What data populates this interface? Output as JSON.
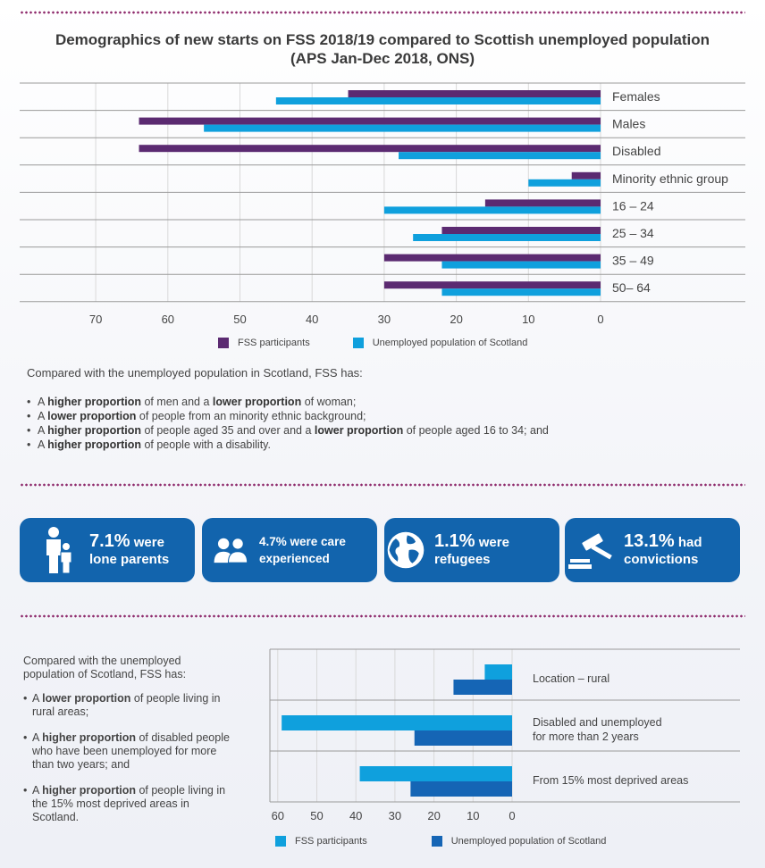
{
  "title_line1": "Demographics of new starts on FSS 2018/19 compared to Scottish unemployed population",
  "title_line2": "(APS Jan-Dec 2018, ONS)",
  "colors": {
    "purple": "#5b2a71",
    "cyan": "#0fa0dd",
    "darkblue": "#1565b5",
    "cardblue": "#1264ad"
  },
  "chart_data": [
    {
      "type": "bar",
      "orientation": "horizontal-reversed",
      "categories": [
        "Females",
        "Males",
        "Disabled",
        "Minority ethnic group",
        "16 – 24",
        "25 – 34",
        "35 – 49",
        "50– 64"
      ],
      "series": [
        {
          "name": "FSS participants",
          "values": [
            35,
            64,
            64,
            4,
            16,
            22,
            30,
            30
          ]
        },
        {
          "name": "Unemployed population of Scotland",
          "values": [
            45,
            55,
            28,
            10,
            30,
            26,
            22,
            22
          ]
        }
      ],
      "xticks": [
        "70",
        "60",
        "50",
        "40",
        "30",
        "20",
        "10",
        "0"
      ],
      "xlim": [
        0,
        70
      ],
      "grid": true,
      "legend": "bottom"
    },
    {
      "type": "bar",
      "orientation": "horizontal-reversed",
      "categories": [
        "Location – rural",
        "Disabled and unemployed|for more than 2 years",
        "From 15% most deprived areas"
      ],
      "series": [
        {
          "name": "FSS participants",
          "values": [
            7,
            59,
            39
          ]
        },
        {
          "name": "Unemployed population of Scotland",
          "values": [
            15,
            25,
            26
          ]
        }
      ],
      "xticks": [
        "60",
        "50",
        "40",
        "30",
        "20",
        "10",
        "0"
      ],
      "xlim": [
        0,
        60
      ],
      "grid": true,
      "legend": "bottom"
    }
  ],
  "intro": "Compared with the unemployed population in Scotland, FSS has:",
  "bullets": [
    {
      "a": "A ",
      "b": "higher proportion",
      "c": " of men and a ",
      "d": "lower proportion",
      "e": " of woman;"
    },
    {
      "a": "A ",
      "b": "lower proportion",
      "c": " of people from an minority ethnic background;",
      "d": "",
      "e": ""
    },
    {
      "a": "A ",
      "b": "higher proportion",
      "c": " of people aged 35 and over and a ",
      "d": "lower proportion",
      "e": " of people aged 16 to 34; and"
    },
    {
      "a": "A ",
      "b": "higher proportion",
      "c": " of people with a disability.",
      "d": "",
      "e": ""
    }
  ],
  "cards": [
    {
      "big": "7.1%",
      "rest": " were",
      "line2": "lone parents",
      "icon": "parent-child-icon"
    },
    {
      "big": "4.7%",
      "rest": " were care",
      "line2": "experienced",
      "icon": "people-icon"
    },
    {
      "big": "1.1%",
      "rest": " were",
      "line2": "refugees",
      "icon": "globe-icon"
    },
    {
      "big": "13.1%",
      "rest": " had",
      "line2": "convictions",
      "icon": "gavel-icon"
    }
  ],
  "left": {
    "intro": "Compared with the unemployed population of Scotland, FSS has:",
    "items": [
      {
        "a": "A ",
        "b": "lower proportion",
        "c": " of people living in rural areas;"
      },
      {
        "a": "A ",
        "b": "higher proportion",
        "c": " of disabled people who have been unemployed for more than two years; and"
      },
      {
        "a": "A ",
        "b": "higher proportion",
        "c": " of people living in the 15% most deprived areas in Scotland."
      }
    ]
  }
}
